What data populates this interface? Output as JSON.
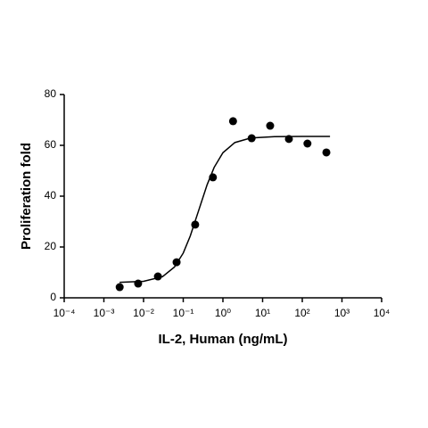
{
  "chart_data": {
    "type": "scatter",
    "x_label": "IL-2, Human (ng/mL)",
    "y_label": "Proliferation fold",
    "xscale": "log",
    "xlim": [
      0.0001,
      10000
    ],
    "xticks": [
      {
        "value": 0.0001,
        "label": "10⁻⁴"
      },
      {
        "value": 0.001,
        "label": "10⁻³"
      },
      {
        "value": 0.01,
        "label": "10⁻²"
      },
      {
        "value": 0.1,
        "label": "10⁻¹"
      },
      {
        "value": 1,
        "label": "10⁰"
      },
      {
        "value": 10,
        "label": "10¹"
      },
      {
        "value": 100,
        "label": "10²"
      },
      {
        "value": 1000,
        "label": "10³"
      },
      {
        "value": 10000,
        "label": "10⁴"
      }
    ],
    "ylim": [
      0,
      80
    ],
    "yticks": [
      0,
      20,
      40,
      60,
      80
    ],
    "color": "#000000",
    "points": {
      "x": [
        0.0025,
        0.0073,
        0.023,
        0.068,
        0.2,
        0.56,
        1.8,
        5.3,
        15.5,
        46,
        135,
        405
      ],
      "values": [
        4.2,
        5.6,
        8.4,
        14,
        28.8,
        47.4,
        69.5,
        62.8,
        67.7,
        62.5,
        60.7,
        57.2
      ]
    },
    "fit": {
      "x": [
        0.0025,
        0.01,
        0.03,
        0.06,
        0.1,
        0.15,
        0.25,
        0.4,
        0.6,
        1,
        2,
        5,
        20,
        100,
        500
      ],
      "values": [
        6.1,
        6.5,
        8.3,
        12.1,
        17.6,
        24.3,
        34.8,
        44.5,
        51.3,
        57.1,
        61.1,
        62.9,
        63.4,
        63.5,
        63.5
      ]
    }
  }
}
